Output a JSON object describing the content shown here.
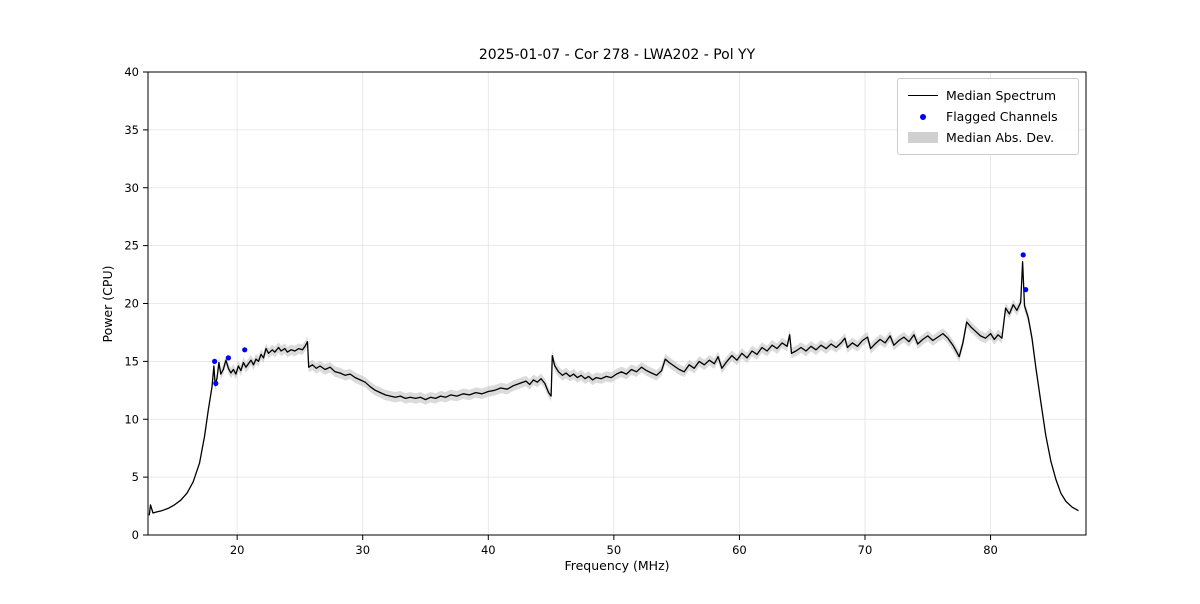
{
  "chart_data": {
    "type": "line",
    "title": "2025-01-07 - Cor 278 - LWA202 - Pol YY",
    "xlabel": "Frequency (MHz)",
    "ylabel": "Power (CPU)",
    "xlim": [
      12.9,
      87.6
    ],
    "ylim": [
      0,
      40
    ],
    "xticks": [
      20,
      30,
      40,
      50,
      60,
      70,
      80
    ],
    "yticks": [
      0,
      5,
      10,
      15,
      20,
      25,
      30,
      35,
      40
    ],
    "grid": true,
    "legend_loc": "upper right",
    "legend": [
      "Median Spectrum",
      "Flagged Channels",
      "Median Abs. Dev."
    ],
    "colors": {
      "line": "#000000",
      "flagged": "#0000ff",
      "band": "#c8c8c8",
      "grid": "#e3e3e3"
    },
    "mad_halfwidth": 0.45,
    "mad_range": [
      17.8,
      83.8
    ],
    "points": [
      [
        13.0,
        1.7
      ],
      [
        13.1,
        2.6
      ],
      [
        13.3,
        1.9
      ],
      [
        13.6,
        2.0
      ],
      [
        14.0,
        2.1
      ],
      [
        14.5,
        2.3
      ],
      [
        15.0,
        2.6
      ],
      [
        15.5,
        3.0
      ],
      [
        16.0,
        3.6
      ],
      [
        16.5,
        4.6
      ],
      [
        17.0,
        6.2
      ],
      [
        17.4,
        8.5
      ],
      [
        17.7,
        10.8
      ],
      [
        18.0,
        12.8
      ],
      [
        18.15,
        14.6
      ],
      [
        18.25,
        12.9
      ],
      [
        18.4,
        13.6
      ],
      [
        18.55,
        14.9
      ],
      [
        18.7,
        13.9
      ],
      [
        18.9,
        14.3
      ],
      [
        19.1,
        15.1
      ],
      [
        19.3,
        14.4
      ],
      [
        19.5,
        14.0
      ],
      [
        19.7,
        14.3
      ],
      [
        19.9,
        13.9
      ],
      [
        20.1,
        14.6
      ],
      [
        20.3,
        14.2
      ],
      [
        20.5,
        14.9
      ],
      [
        20.7,
        14.5
      ],
      [
        20.9,
        14.8
      ],
      [
        21.1,
        15.1
      ],
      [
        21.3,
        14.7
      ],
      [
        21.5,
        15.2
      ],
      [
        21.7,
        15.0
      ],
      [
        21.9,
        15.6
      ],
      [
        22.1,
        15.3
      ],
      [
        22.3,
        16.1
      ],
      [
        22.5,
        15.7
      ],
      [
        22.8,
        16.0
      ],
      [
        23.0,
        15.8
      ],
      [
        23.3,
        16.2
      ],
      [
        23.5,
        15.9
      ],
      [
        23.8,
        16.1
      ],
      [
        24.0,
        15.8
      ],
      [
        24.3,
        16.0
      ],
      [
        24.6,
        15.9
      ],
      [
        24.9,
        16.1
      ],
      [
        25.2,
        16.0
      ],
      [
        25.4,
        16.3
      ],
      [
        25.6,
        16.7
      ],
      [
        25.7,
        14.5
      ],
      [
        26.0,
        14.7
      ],
      [
        26.3,
        14.4
      ],
      [
        26.6,
        14.6
      ],
      [
        27.0,
        14.3
      ],
      [
        27.4,
        14.5
      ],
      [
        27.8,
        14.1
      ],
      [
        28.2,
        14.0
      ],
      [
        28.6,
        13.8
      ],
      [
        29.0,
        13.9
      ],
      [
        29.4,
        13.6
      ],
      [
        29.8,
        13.4
      ],
      [
        30.2,
        13.2
      ],
      [
        30.6,
        12.8
      ],
      [
        31.0,
        12.5
      ],
      [
        31.4,
        12.3
      ],
      [
        31.8,
        12.1
      ],
      [
        32.2,
        12.0
      ],
      [
        32.6,
        11.9
      ],
      [
        33.0,
        12.0
      ],
      [
        33.4,
        11.8
      ],
      [
        33.8,
        11.9
      ],
      [
        34.2,
        11.8
      ],
      [
        34.6,
        11.9
      ],
      [
        35.0,
        11.7
      ],
      [
        35.4,
        11.9
      ],
      [
        35.8,
        11.8
      ],
      [
        36.2,
        12.0
      ],
      [
        36.6,
        11.9
      ],
      [
        37.0,
        12.1
      ],
      [
        37.5,
        12.0
      ],
      [
        38.0,
        12.2
      ],
      [
        38.5,
        12.1
      ],
      [
        39.0,
        12.3
      ],
      [
        39.5,
        12.2
      ],
      [
        40.0,
        12.4
      ],
      [
        40.5,
        12.5
      ],
      [
        41.0,
        12.7
      ],
      [
        41.5,
        12.6
      ],
      [
        42.0,
        12.9
      ],
      [
        42.5,
        13.1
      ],
      [
        43.0,
        13.3
      ],
      [
        43.3,
        13.0
      ],
      [
        43.6,
        13.4
      ],
      [
        43.9,
        13.2
      ],
      [
        44.2,
        13.5
      ],
      [
        44.5,
        13.1
      ],
      [
        44.8,
        12.3
      ],
      [
        45.0,
        12.0
      ],
      [
        45.1,
        15.5
      ],
      [
        45.3,
        14.6
      ],
      [
        45.6,
        14.1
      ],
      [
        45.9,
        13.8
      ],
      [
        46.2,
        14.0
      ],
      [
        46.5,
        13.7
      ],
      [
        46.8,
        13.9
      ],
      [
        47.1,
        13.6
      ],
      [
        47.4,
        13.8
      ],
      [
        47.7,
        13.5
      ],
      [
        48.0,
        13.7
      ],
      [
        48.3,
        13.4
      ],
      [
        48.6,
        13.6
      ],
      [
        49.0,
        13.5
      ],
      [
        49.4,
        13.7
      ],
      [
        49.8,
        13.6
      ],
      [
        50.2,
        13.9
      ],
      [
        50.6,
        14.1
      ],
      [
        51.0,
        13.9
      ],
      [
        51.4,
        14.3
      ],
      [
        51.8,
        14.1
      ],
      [
        52.2,
        14.5
      ],
      [
        52.6,
        14.2
      ],
      [
        53.0,
        14.0
      ],
      [
        53.4,
        13.8
      ],
      [
        53.8,
        14.2
      ],
      [
        54.1,
        15.2
      ],
      [
        54.4,
        14.9
      ],
      [
        54.8,
        14.6
      ],
      [
        55.2,
        14.3
      ],
      [
        55.6,
        14.1
      ],
      [
        56.0,
        14.7
      ],
      [
        56.4,
        14.4
      ],
      [
        56.8,
        15.0
      ],
      [
        57.2,
        14.7
      ],
      [
        57.6,
        15.1
      ],
      [
        58.0,
        14.8
      ],
      [
        58.3,
        15.4
      ],
      [
        58.6,
        14.4
      ],
      [
        59.0,
        15.0
      ],
      [
        59.4,
        15.5
      ],
      [
        59.8,
        15.1
      ],
      [
        60.2,
        15.7
      ],
      [
        60.6,
        15.3
      ],
      [
        61.0,
        15.9
      ],
      [
        61.4,
        15.6
      ],
      [
        61.8,
        16.2
      ],
      [
        62.2,
        15.9
      ],
      [
        62.6,
        16.4
      ],
      [
        63.0,
        16.1
      ],
      [
        63.4,
        16.6
      ],
      [
        63.8,
        16.3
      ],
      [
        64.0,
        17.3
      ],
      [
        64.15,
        15.7
      ],
      [
        64.5,
        15.9
      ],
      [
        64.9,
        16.2
      ],
      [
        65.3,
        15.9
      ],
      [
        65.7,
        16.3
      ],
      [
        66.1,
        16.0
      ],
      [
        66.5,
        16.4
      ],
      [
        66.9,
        16.1
      ],
      [
        67.3,
        16.5
      ],
      [
        67.7,
        16.2
      ],
      [
        68.1,
        16.6
      ],
      [
        68.4,
        17.0
      ],
      [
        68.6,
        16.2
      ],
      [
        69.0,
        16.6
      ],
      [
        69.4,
        16.3
      ],
      [
        69.8,
        16.8
      ],
      [
        70.2,
        17.1
      ],
      [
        70.45,
        16.1
      ],
      [
        70.8,
        16.5
      ],
      [
        71.2,
        16.9
      ],
      [
        71.6,
        16.6
      ],
      [
        72.0,
        17.2
      ],
      [
        72.3,
        16.4
      ],
      [
        72.7,
        16.8
      ],
      [
        73.1,
        17.1
      ],
      [
        73.5,
        16.7
      ],
      [
        73.9,
        17.3
      ],
      [
        74.2,
        16.5
      ],
      [
        74.6,
        16.9
      ],
      [
        75.0,
        17.2
      ],
      [
        75.4,
        16.8
      ],
      [
        75.8,
        17.1
      ],
      [
        76.2,
        17.4
      ],
      [
        76.6,
        17.0
      ],
      [
        77.0,
        16.4
      ],
      [
        77.3,
        15.8
      ],
      [
        77.5,
        15.4
      ],
      [
        77.8,
        16.6
      ],
      [
        78.1,
        18.4
      ],
      [
        78.4,
        18.0
      ],
      [
        78.8,
        17.6
      ],
      [
        79.2,
        17.2
      ],
      [
        79.6,
        17.0
      ],
      [
        80.0,
        17.4
      ],
      [
        80.3,
        16.9
      ],
      [
        80.6,
        17.3
      ],
      [
        80.9,
        17.0
      ],
      [
        81.2,
        19.6
      ],
      [
        81.5,
        19.1
      ],
      [
        81.8,
        19.9
      ],
      [
        82.1,
        19.4
      ],
      [
        82.4,
        20.1
      ],
      [
        82.55,
        23.6
      ],
      [
        82.7,
        19.8
      ],
      [
        83.0,
        18.8
      ],
      [
        83.3,
        17.0
      ],
      [
        83.6,
        14.5
      ],
      [
        84.0,
        11.5
      ],
      [
        84.4,
        8.6
      ],
      [
        84.8,
        6.4
      ],
      [
        85.2,
        4.8
      ],
      [
        85.6,
        3.6
      ],
      [
        86.0,
        2.9
      ],
      [
        86.5,
        2.4
      ],
      [
        87.0,
        2.1
      ]
    ],
    "flagged": [
      [
        18.2,
        15.0
      ],
      [
        18.3,
        13.1
      ],
      [
        19.3,
        15.3
      ],
      [
        20.6,
        16.0
      ],
      [
        82.6,
        24.2
      ],
      [
        82.8,
        21.2
      ]
    ]
  }
}
